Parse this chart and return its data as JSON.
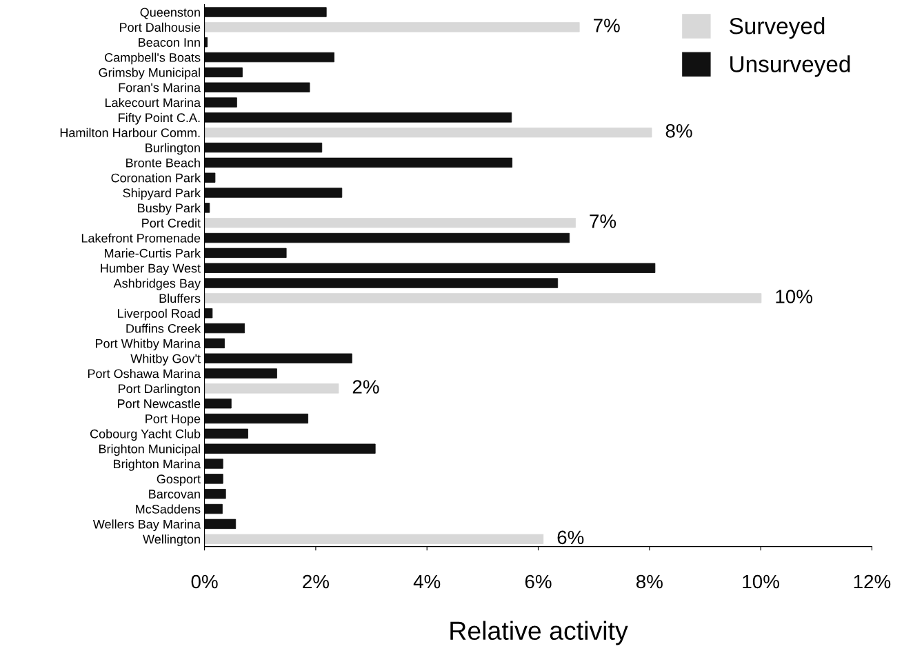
{
  "chart_data": {
    "type": "bar",
    "orientation": "horizontal",
    "stacked": true,
    "xlabel": "Relative activity",
    "categories": [
      "Queenston",
      "Port Dalhousie",
      "Beacon Inn",
      "Campbell's Boats",
      "Grimsby Municipal",
      "Foran's Marina",
      "Lakecourt Marina",
      "Fifty Point C.A.",
      "Hamilton Harbour Comm.",
      "Burlington",
      "Bronte Beach",
      "Coronation Park",
      "Shipyard Park",
      "Busby Park",
      "Port Credit",
      "Lakefront Promenade",
      "Marie-Curtis Park",
      "Humber Bay West",
      "Ashbridges Bay",
      "Bluffers",
      "Liverpool Road",
      "Duffins Creek",
      "Port Whitby Marina",
      "Whitby Gov't",
      "Port Oshawa Marina",
      "Port Darlington",
      "Port Newcastle",
      "Port Hope",
      "Cobourg Yacht Club",
      "Brighton Municipal",
      "Brighton Marina",
      "Gosport",
      "Barcovan",
      "McSaddens",
      "Wellers Bay Marina",
      "Wellington"
    ],
    "series": [
      {
        "name": "Surveyed",
        "color": "#d8d8d8",
        "values": [
          null,
          6.74,
          null,
          null,
          null,
          null,
          null,
          null,
          8.04,
          null,
          null,
          null,
          null,
          null,
          6.67,
          null,
          null,
          null,
          null,
          10.01,
          null,
          null,
          null,
          null,
          null,
          2.41,
          null,
          null,
          null,
          null,
          null,
          null,
          null,
          null,
          null,
          6.09
        ],
        "value_labels": [
          null,
          "7%",
          null,
          null,
          null,
          null,
          null,
          null,
          "8%",
          null,
          null,
          null,
          null,
          null,
          "7%",
          null,
          null,
          null,
          null,
          "10%",
          null,
          null,
          null,
          null,
          null,
          "2%",
          null,
          null,
          null,
          null,
          null,
          null,
          null,
          null,
          null,
          "6%"
        ]
      },
      {
        "name": "Unsurveyed",
        "color": "#111111",
        "values": [
          2.19,
          null,
          0.05,
          2.33,
          0.68,
          1.89,
          0.58,
          5.52,
          null,
          2.11,
          5.53,
          0.19,
          2.47,
          0.09,
          null,
          6.56,
          1.47,
          8.1,
          6.35,
          null,
          0.14,
          0.72,
          0.36,
          2.65,
          1.3,
          null,
          0.48,
          1.86,
          0.78,
          3.07,
          0.33,
          0.33,
          0.38,
          0.32,
          0.56,
          null
        ]
      }
    ],
    "xlim": [
      0,
      12
    ],
    "xticks": [
      {
        "value": 0,
        "label": "0%"
      },
      {
        "value": 2,
        "label": "2%"
      },
      {
        "value": 4,
        "label": "4%"
      },
      {
        "value": 6,
        "label": "6%"
      },
      {
        "value": 8,
        "label": "8%"
      },
      {
        "value": 10,
        "label": "10%"
      },
      {
        "value": 12,
        "label": "12%"
      }
    ],
    "grid": false,
    "legend": "top right"
  }
}
